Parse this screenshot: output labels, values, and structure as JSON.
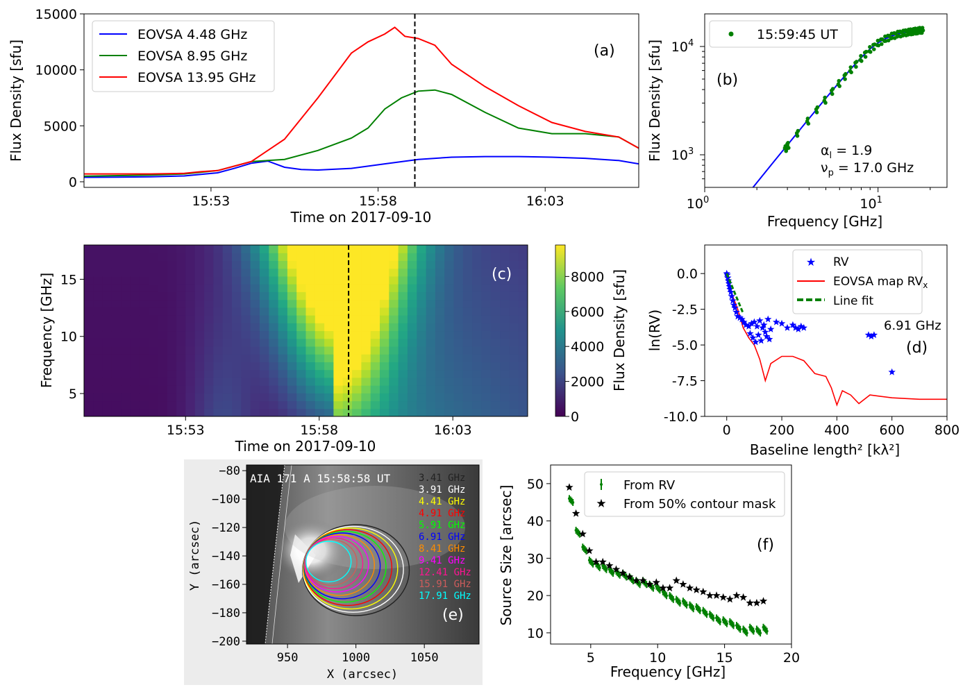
{
  "chart_data": [
    {
      "panel": "a",
      "type": "line",
      "tag": "(a)",
      "xlabel": "Time on 2017-09-10",
      "ylabel": "Flux Density [sfu]",
      "x_range_min": [
        0,
        16.6
      ],
      "x_ticks": [
        {
          "t": 3.8,
          "label": "15:53"
        },
        {
          "t": 8.8,
          "label": "15:58"
        },
        {
          "t": 13.8,
          "label": "16:03"
        }
      ],
      "ylim": [
        -500,
        15000
      ],
      "y_ticks": [
        0,
        5000,
        10000,
        15000
      ],
      "marker_time": 9.9,
      "legend": "upper-left",
      "series": [
        {
          "name": "EOVSA 4.48 GHz",
          "color": "#0000ff",
          "t": [
            0,
            1,
            2,
            3,
            4,
            4.5,
            5,
            5.5,
            6,
            6.5,
            7,
            8,
            9,
            10,
            11,
            12,
            13,
            14,
            15,
            16,
            16.6
          ],
          "values": [
            400,
            420,
            450,
            520,
            800,
            1200,
            1650,
            1850,
            1300,
            1100,
            1050,
            1200,
            1600,
            2000,
            2200,
            2250,
            2250,
            2200,
            2100,
            1900,
            1600
          ]
        },
        {
          "name": "EOVSA 8.95 GHz",
          "color": "#008000",
          "t": [
            0,
            2,
            3,
            4,
            5,
            5.5,
            6,
            7,
            8,
            8.5,
            9,
            9.5,
            10,
            10.5,
            11,
            12,
            13,
            14,
            15,
            16,
            16.6
          ],
          "values": [
            500,
            600,
            700,
            1000,
            1800,
            1900,
            2000,
            2800,
            3900,
            4800,
            6500,
            7500,
            8100,
            8200,
            7800,
            6200,
            4800,
            4300,
            4300,
            4000,
            3000
          ]
        },
        {
          "name": "EOVSA 13.95 GHz",
          "color": "#ff0000",
          "t": [
            0,
            2,
            3,
            3.5,
            4,
            5,
            5.5,
            6,
            7,
            8,
            8.5,
            9,
            9.3,
            9.6,
            10,
            10.5,
            11,
            12,
            13,
            14,
            15,
            16,
            16.6
          ],
          "values": [
            700,
            700,
            750,
            900,
            1000,
            1800,
            2800,
            3800,
            7500,
            11500,
            12500,
            13200,
            13800,
            13000,
            12800,
            12200,
            10500,
            8500,
            6800,
            5300,
            4500,
            4000,
            3000
          ]
        }
      ]
    },
    {
      "panel": "b",
      "type": "scatter",
      "tag": "(b)",
      "xlabel": "Frequency [GHz]",
      "ylabel": "Flux Density [sfu]",
      "xscale": "log",
      "yscale": "log",
      "xlim": [
        1,
        25
      ],
      "ylim": [
        500,
        20000
      ],
      "x_tick_labels": [
        {
          "v": 1,
          "base": "10",
          "exp": "0"
        },
        {
          "v": 10,
          "base": "10",
          "exp": "1"
        }
      ],
      "y_tick_labels": [
        {
          "v": 1000,
          "base": "10",
          "exp": "3"
        },
        {
          "v": 10000,
          "base": "10",
          "exp": "4"
        }
      ],
      "legend": "15:59:45 UT",
      "annotations": {
        "alpha_sym": "α",
        "alpha_sub": "l",
        "alpha_val": " = 1.9",
        "nu_sym": "ν",
        "nu_sub": "p",
        "nu_val": " = 17.0 GHz"
      },
      "freqs": [
        2.9,
        2.95,
        3.0,
        3.4,
        3.9,
        4.4,
        4.9,
        5.4,
        5.9,
        6.4,
        6.9,
        7.4,
        7.9,
        8.4,
        8.9,
        9.4,
        9.9,
        10.4,
        10.9,
        11.4,
        11.9,
        12.4,
        12.9,
        13.4,
        13.9,
        14.4,
        14.9,
        15.4,
        15.9,
        16.4,
        16.9,
        17.4,
        17.9
      ],
      "fit": {
        "color": "#0000ff",
        "x": [
          1.9,
          2.5,
          3,
          4,
          5,
          6,
          7,
          8,
          9,
          10,
          11,
          12,
          13,
          14,
          15,
          16,
          17,
          18
        ],
        "y": [
          500,
          860,
          1230,
          2160,
          3330,
          4700,
          6250,
          7900,
          9500,
          10800,
          11800,
          12500,
          13000,
          13300,
          13600,
          13800,
          14000,
          14200
        ]
      }
    },
    {
      "panel": "c",
      "type": "heatmap",
      "tag": "(c)",
      "xlabel": "Time on 2017-09-10",
      "ylabel": "Frequency [GHz]",
      "y_ticks": [
        5,
        10,
        15
      ],
      "x_ticks": [
        {
          "t": 3.8,
          "label": "15:53"
        },
        {
          "t": 8.8,
          "label": "15:58"
        },
        {
          "t": 13.8,
          "label": "16:03"
        }
      ],
      "ylim": [
        3,
        18
      ],
      "marker_time": 9.9,
      "colorbar_label": "Flux Density [sfu]",
      "colorbar_ticks": [
        0,
        2000,
        4000,
        6000,
        8000
      ],
      "vmax": 9800
    },
    {
      "panel": "d",
      "type": "scatter",
      "tag": "(d)",
      "xlabel": "Baseline length² [kλ²]",
      "ylabel": "ln(RV)",
      "xlim": [
        -80,
        800
      ],
      "ylim": [
        -10,
        2
      ],
      "x_ticks": [
        0,
        200,
        400,
        600,
        800
      ],
      "y_ticks": [
        0.0,
        -2.5,
        -5.0,
        -7.5,
        -10.0
      ],
      "annotation": "6.91 GHz",
      "legend": [
        "RV",
        "EOVSA map RV",
        "Line fit"
      ],
      "legend_sub": "x",
      "rv_points": [
        [
          0,
          0
        ],
        [
          2,
          -0.1
        ],
        [
          4,
          -0.3
        ],
        [
          6,
          -0.5
        ],
        [
          8,
          -0.7
        ],
        [
          10,
          -0.9
        ],
        [
          12,
          -1.1
        ],
        [
          15,
          -1.3
        ],
        [
          18,
          -1.6
        ],
        [
          22,
          -1.9
        ],
        [
          26,
          -2.2
        ],
        [
          30,
          -2.4
        ],
        [
          35,
          -2.7
        ],
        [
          40,
          -3.0
        ],
        [
          48,
          -3.1
        ],
        [
          55,
          -3.2
        ],
        [
          62,
          -3.4
        ],
        [
          70,
          -3.6
        ],
        [
          80,
          -3.7
        ],
        [
          90,
          -3.5
        ],
        [
          100,
          -3.4
        ],
        [
          110,
          -3.7
        ],
        [
          120,
          -3.3
        ],
        [
          130,
          -3.8
        ],
        [
          140,
          -4.1
        ],
        [
          150,
          -3.2
        ],
        [
          160,
          -3.9
        ],
        [
          180,
          -3.4
        ],
        [
          200,
          -3.5
        ],
        [
          220,
          -3.8
        ],
        [
          240,
          -3.6
        ],
        [
          250,
          -3.8
        ],
        [
          260,
          -3.9
        ],
        [
          270,
          -3.7
        ],
        [
          280,
          -3.8
        ],
        [
          85,
          -4.2
        ],
        [
          95,
          -4.5
        ],
        [
          105,
          -4.8
        ],
        [
          115,
          -4.3
        ],
        [
          125,
          -4.7
        ],
        [
          135,
          -3.6
        ],
        [
          145,
          -4.4
        ],
        [
          155,
          -4.6
        ],
        [
          515,
          -4.3
        ],
        [
          525,
          -4.4
        ],
        [
          535,
          -4.3
        ],
        [
          600,
          -6.9
        ]
      ],
      "map_rv": {
        "x": [
          0,
          20,
          40,
          60,
          80,
          100,
          120,
          140,
          160,
          200,
          240,
          280,
          320,
          360,
          380,
          400,
          420,
          450,
          480,
          520,
          560,
          600,
          700,
          800
        ],
        "y": [
          0,
          -1.5,
          -2.5,
          -3.8,
          -4.5,
          -5.0,
          -6.0,
          -7.5,
          -6.3,
          -5.8,
          -5.8,
          -6.1,
          -7.0,
          -7.2,
          -8.0,
          -9.2,
          -8.2,
          -8.5,
          -9.1,
          -8.5,
          -8.6,
          -8.7,
          -8.8,
          -8.8
        ]
      },
      "line_fit": {
        "x": [
          0,
          60
        ],
        "y": [
          0,
          -2.8
        ]
      }
    },
    {
      "panel": "e",
      "type": "image",
      "tag": "(e)",
      "title": "AIA 171 A 15:58:58 UT",
      "xlabel": "X (arcsec)",
      "ylabel": "Y (arcsec)",
      "x_ticks": [
        950,
        1000,
        1050
      ],
      "y_ticks": [
        -80,
        -100,
        -120,
        -140,
        -160,
        -180,
        -200
      ],
      "contours": [
        {
          "label": "3.41 GHz",
          "color": "#222222"
        },
        {
          "label": "3.91 GHz",
          "color": "#ffffff"
        },
        {
          "label": "4.41 GHz",
          "color": "#ffff00"
        },
        {
          "label": "4.91 GHz",
          "color": "#ff0000"
        },
        {
          "label": "5.91 GHz",
          "color": "#00ff00"
        },
        {
          "label": "6.91 GHz",
          "color": "#0000ff"
        },
        {
          "label": "8.41 GHz",
          "color": "#ff8c00"
        },
        {
          "label": "9.41 GHz",
          "color": "#ff00ff"
        },
        {
          "label": "12.41 GHz",
          "color": "#ff1493"
        },
        {
          "label": "15.91 GHz",
          "color": "#cd5c5c"
        },
        {
          "label": "17.91 GHz",
          "color": "#00ffff"
        }
      ]
    },
    {
      "panel": "f",
      "type": "scatter",
      "tag": "(f)",
      "xlabel": "Frequency [GHz]",
      "ylabel": "Source Size [arcsec]",
      "xlim": [
        2,
        20
      ],
      "ylim": [
        7,
        55
      ],
      "x_ticks": [
        5,
        10,
        15,
        20
      ],
      "y_ticks": [
        10,
        20,
        30,
        40,
        50
      ],
      "legend": [
        "From RV",
        "From 50% contour mask"
      ],
      "rv": {
        "x": [
          3.4,
          3.9,
          4.4,
          4.9,
          5.4,
          5.9,
          6.4,
          6.9,
          7.4,
          7.9,
          8.4,
          8.9,
          9.4,
          9.9,
          10.4,
          10.9,
          11.4,
          11.9,
          12.4,
          12.9,
          13.4,
          13.9,
          14.4,
          14.9,
          15.4,
          15.9,
          16.4,
          16.9,
          17.4,
          17.9
        ],
        "y": [
          46,
          37.5,
          33,
          29.5,
          28.5,
          28,
          27,
          26.5,
          26,
          25,
          24,
          24,
          23,
          22.5,
          21,
          20,
          19,
          18.5,
          17.5,
          17,
          16,
          15,
          14,
          13.5,
          13,
          12,
          11,
          11.5,
          11,
          11.5
        ]
      },
      "mask": {
        "x": [
          3.4,
          3.9,
          4.4,
          4.9,
          5.4,
          5.9,
          6.4,
          6.9,
          7.4,
          7.9,
          8.4,
          8.9,
          9.4,
          9.9,
          10.4,
          10.9,
          11.4,
          11.9,
          12.4,
          12.9,
          13.4,
          13.9,
          14.4,
          14.9,
          15.4,
          15.9,
          16.4,
          16.9,
          17.4,
          17.9
        ],
        "y": [
          49,
          42,
          36.5,
          32,
          29,
          29,
          28,
          27,
          26,
          25,
          24,
          24,
          23,
          23.5,
          22,
          22,
          24,
          23,
          22,
          21.5,
          21,
          20,
          20,
          19.5,
          19,
          20,
          19.5,
          18,
          18,
          18.5
        ]
      }
    }
  ]
}
